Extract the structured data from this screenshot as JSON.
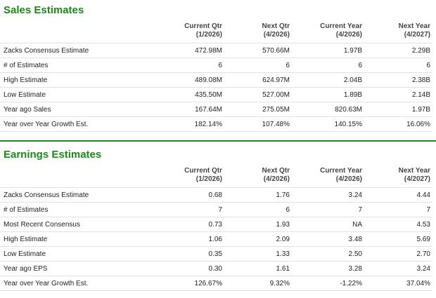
{
  "sales": {
    "title": "Sales Estimates",
    "headers": [
      [
        "Current Qtr",
        "(1/2026)"
      ],
      [
        "Next Qtr",
        "(4/2026)"
      ],
      [
        "Current Year",
        "(4/2026)"
      ],
      [
        "Next Year",
        "(4/2027)"
      ]
    ],
    "rows": [
      [
        "Zacks Consensus Estimate",
        "472.98M",
        "570.66M",
        "1.97B",
        "2.29B"
      ],
      [
        "# of Estimates",
        "6",
        "6",
        "6",
        "6"
      ],
      [
        "High Estimate",
        "489.08M",
        "624.97M",
        "2.04B",
        "2.38B"
      ],
      [
        "Low Estimate",
        "435.50M",
        "527.00M",
        "1.89B",
        "2.14B"
      ],
      [
        "Year ago Sales",
        "167.64M",
        "275.05M",
        "820.63M",
        "1.97B"
      ],
      [
        "Year over Year Growth Est.",
        "182.14%",
        "107.48%",
        "140.15%",
        "16.06%"
      ]
    ]
  },
  "earnings": {
    "title": "Earnings Estimates",
    "headers": [
      [
        "Current Qtr",
        "(1/2026)"
      ],
      [
        "Next Qtr",
        "(4/2026)"
      ],
      [
        "Current Year",
        "(4/2026)"
      ],
      [
        "Next Year",
        "(4/2027)"
      ]
    ],
    "rows": [
      [
        "Zacks Consensus Estimate",
        "0.68",
        "1.76",
        "3.24",
        "4.44"
      ],
      [
        "# of Estimates",
        "7",
        "6",
        "7",
        "7"
      ],
      [
        "Most Recent Consensus",
        "0.73",
        "1.93",
        "NA",
        "4.53"
      ],
      [
        "High Estimate",
        "1.06",
        "2.09",
        "3.48",
        "5.69"
      ],
      [
        "Low Estimate",
        "0.35",
        "1.33",
        "2.50",
        "2.70"
      ],
      [
        "Year ago EPS",
        "0.30",
        "1.61",
        "3.28",
        "3.24"
      ],
      [
        "Year over Year Growth Est.",
        "126.67%",
        "9.32%",
        "-1.22%",
        "37.04%"
      ]
    ]
  }
}
